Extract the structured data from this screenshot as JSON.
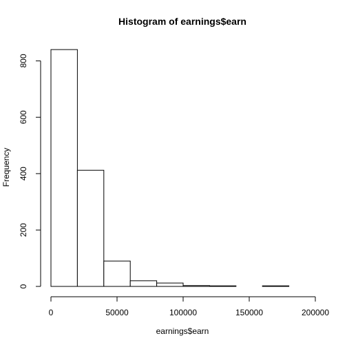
{
  "chart_data": {
    "type": "bar",
    "subtype": "histogram",
    "title": "Histogram of earnings$earn",
    "xlabel": "earnings$earn",
    "ylabel": "Frequency",
    "bins": [
      {
        "from": 0,
        "to": 20000,
        "count": 840
      },
      {
        "from": 20000,
        "to": 40000,
        "count": 412
      },
      {
        "from": 40000,
        "to": 60000,
        "count": 90
      },
      {
        "from": 60000,
        "to": 80000,
        "count": 20
      },
      {
        "from": 80000,
        "to": 100000,
        "count": 12
      },
      {
        "from": 100000,
        "to": 120000,
        "count": 3
      },
      {
        "from": 120000,
        "to": 140000,
        "count": 2
      },
      {
        "from": 140000,
        "to": 160000,
        "count": 0
      },
      {
        "from": 160000,
        "to": 180000,
        "count": 2
      },
      {
        "from": 180000,
        "to": 200000,
        "count": 0
      }
    ],
    "xlim": [
      0,
      200000
    ],
    "ylim": [
      0,
      840
    ],
    "xticks": [
      {
        "value": 0,
        "label": "0"
      },
      {
        "value": 50000,
        "label": "50000"
      },
      {
        "value": 100000,
        "label": "100000"
      },
      {
        "value": 150000,
        "label": "150000"
      },
      {
        "value": 200000,
        "label": "200000"
      }
    ],
    "yticks": [
      {
        "value": 0,
        "label": "0"
      },
      {
        "value": 200,
        "label": "200"
      },
      {
        "value": 400,
        "label": "400"
      },
      {
        "value": 600,
        "label": "600"
      },
      {
        "value": 800,
        "label": "800"
      }
    ],
    "grid": false,
    "bar_fill": "#ffffff",
    "bar_stroke": "#000000"
  }
}
